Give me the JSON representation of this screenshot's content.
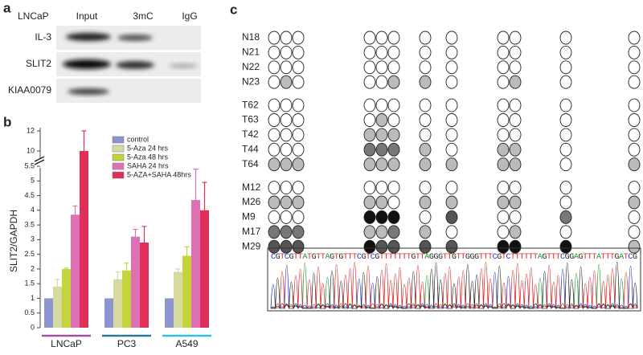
{
  "panel_a": {
    "label": "a",
    "cell_line": "LNCaP",
    "columns": [
      "Input",
      "3mC",
      "IgG"
    ],
    "rows": [
      "IL-3",
      "SLIT2",
      "KIAA0079"
    ]
  },
  "chart_data": {
    "type": "bar",
    "panel_label": "b",
    "ylabel": "SLIT2/GAPDH",
    "categories": [
      "LNCaP",
      "PC3",
      "A549"
    ],
    "category_colors": [
      "#a050a0",
      "#2a7a9a",
      "#30c0e0"
    ],
    "ylim": [
      0,
      12
    ],
    "axis_break": [
      5.5,
      10
    ],
    "yticks": [
      0,
      0.5,
      1,
      1.5,
      2,
      2.5,
      3,
      3.5,
      4,
      4.5,
      5,
      5.5,
      10,
      12
    ],
    "series": [
      {
        "name": "control",
        "color": "#8c94d2",
        "values": [
          1,
          1,
          1
        ],
        "errors": [
          null,
          null,
          null
        ]
      },
      {
        "name": "5-Aza 24 hrs",
        "color": "#d6daa0",
        "values": [
          1.4,
          1.65,
          1.9
        ],
        "errors": [
          0.25,
          0.25,
          0.1
        ]
      },
      {
        "name": "5-Aza 48 hrs",
        "color": "#c4d43a",
        "values": [
          2,
          1.95,
          2.45
        ],
        "errors": [
          0.03,
          0.25,
          0.3
        ]
      },
      {
        "name": "SAHA 24 hrs",
        "color": "#de70b4",
        "values": [
          3.85,
          3.1,
          4.35
        ],
        "errors": [
          0.3,
          0.25,
          1.05
        ]
      },
      {
        "name": "5-AZA+SAHA 48hrs",
        "color": "#e0305a",
        "values": [
          10,
          2.9,
          4.0
        ],
        "errors": [
          2,
          0.55,
          0.95
        ]
      }
    ]
  },
  "panel_c": {
    "label": "c",
    "groups": [
      [
        {
          "sample": "N18",
          "sites": [
            "#fff",
            "#fff",
            "#fff",
            "#fff",
            "#fff",
            "#fff",
            "#fff",
            "#fff",
            "#fff",
            "#fff",
            "#fff",
            "#fff"
          ]
        },
        {
          "sample": "N21",
          "sites": [
            "#fff",
            "#fff",
            "#fff",
            "#fff",
            "#fff",
            "#fff",
            "#fff",
            "#fff",
            "#fff",
            "#fff",
            "#fff",
            "#fff"
          ]
        },
        {
          "sample": "N22",
          "sites": [
            "#fff",
            "#fff",
            "#fff",
            "#fff",
            "#fff",
            "#fff",
            "#fff",
            "#fff",
            "#fff",
            "#fff",
            "#fff",
            "#fff"
          ]
        },
        {
          "sample": "N23",
          "sites": [
            "#fff",
            "#bbb",
            "#fff",
            "#fff",
            "#fff",
            "#bbb",
            "#bbb",
            "#fff",
            "#fff",
            "#bbb",
            "#fff",
            "#fff"
          ]
        }
      ],
      [
        {
          "sample": "T62",
          "sites": [
            "#fff",
            "#fff",
            "#fff",
            "#fff",
            "#fff",
            "#fff",
            "#fff",
            "#fff",
            "#fff",
            "#fff",
            "#fff",
            "#fff"
          ]
        },
        {
          "sample": "T63",
          "sites": [
            "#fff",
            "#fff",
            "#fff",
            "#fff",
            "#bbb",
            "#fff",
            "#fff",
            "#fff",
            "#fff",
            "#fff",
            "#fff",
            "#fff"
          ]
        },
        {
          "sample": "T42",
          "sites": [
            "#fff",
            "#fff",
            "#fff",
            "#bbb",
            "#bbb",
            "#bbb",
            "#fff",
            "#fff",
            "#fff",
            "#fff",
            "#fff",
            "#fff"
          ]
        },
        {
          "sample": "T44",
          "sites": [
            "#fff",
            "#fff",
            "#fff",
            "#777",
            "#777",
            "#777",
            "#bbb",
            "#fff",
            "#bbb",
            "#bbb",
            "#fff",
            "#fff"
          ]
        },
        {
          "sample": "T64",
          "sites": [
            "#bbb",
            "#bbb",
            "#bbb",
            "#bbb",
            "#bbb",
            "#bbb",
            "#bbb",
            "#bbb",
            "#bbb",
            "#bbb",
            "#fff",
            "#bbb"
          ]
        }
      ],
      [
        {
          "sample": "M12",
          "sites": [
            "#fff",
            "#fff",
            "#fff",
            "#fff",
            "#fff",
            "#fff",
            "#fff",
            "#fff",
            "#fff",
            "#fff",
            "#fff",
            "#fff"
          ]
        },
        {
          "sample": "M26",
          "sites": [
            "#bbb",
            "#bbb",
            "#bbb",
            "#bbb",
            "#bbb",
            "#fff",
            "#bbb",
            "#bbb",
            "#bbb",
            "#bbb",
            "#fff",
            "#bbb"
          ]
        },
        {
          "sample": "M9",
          "sites": [
            "#fff",
            "#fff",
            "#fff",
            "#111",
            "#111",
            "#111",
            "#fff",
            "#555",
            "#fff",
            "#fff",
            "#777",
            "#fff"
          ]
        },
        {
          "sample": "M17",
          "sites": [
            "#777",
            "#777",
            "#777",
            "#bbb",
            "#bbb",
            "#777",
            "#bbb",
            "#fff",
            "#fff",
            "#bbb",
            "#fff",
            "#fff"
          ]
        },
        {
          "sample": "M29",
          "sites": [
            "#555",
            "#555",
            "#555",
            "#111",
            "#555",
            "#555",
            "#555",
            "#555",
            "#111",
            "#111",
            "#111",
            "#bbb"
          ]
        }
      ]
    ],
    "sequence": "CGTCGTTATGTTAGTGTTTCGTCGTTTTTTTGTTAGGGTTGTTGGGTTTCGTCTTTTTTAGTTTCGGAGTTTATTTGATCG"
  }
}
